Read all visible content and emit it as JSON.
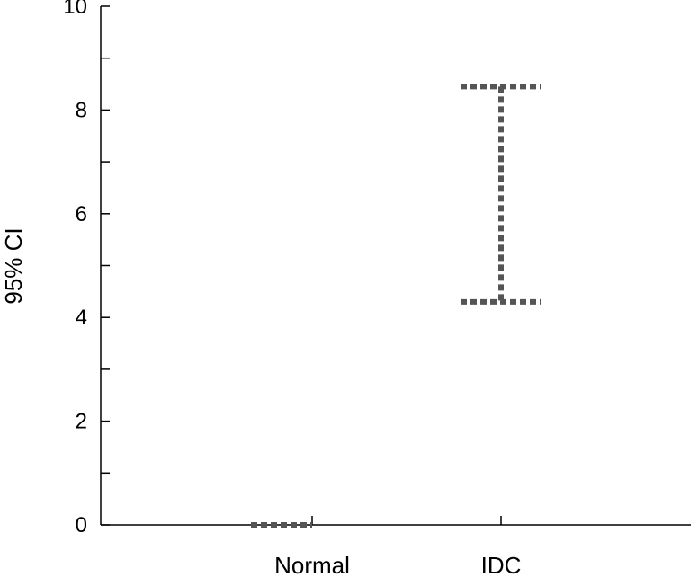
{
  "chart_data": {
    "type": "errorbar",
    "title": "",
    "xlabel": "",
    "ylabel": "95% CI",
    "ylim": [
      0,
      10
    ],
    "yticks": [
      0,
      2,
      4,
      6,
      8,
      10
    ],
    "y_tick_labels": [
      "0",
      "2",
      "4",
      "6",
      "8",
      "10"
    ],
    "categories": [
      "Normal",
      "IDC"
    ],
    "intervals": [
      {
        "category": "Normal",
        "lower": 0,
        "upper": 0
      },
      {
        "category": "IDC",
        "lower": 4.3,
        "upper": 8.45
      }
    ],
    "grid": false,
    "line_color": "#555555",
    "line_style": "dotted"
  }
}
